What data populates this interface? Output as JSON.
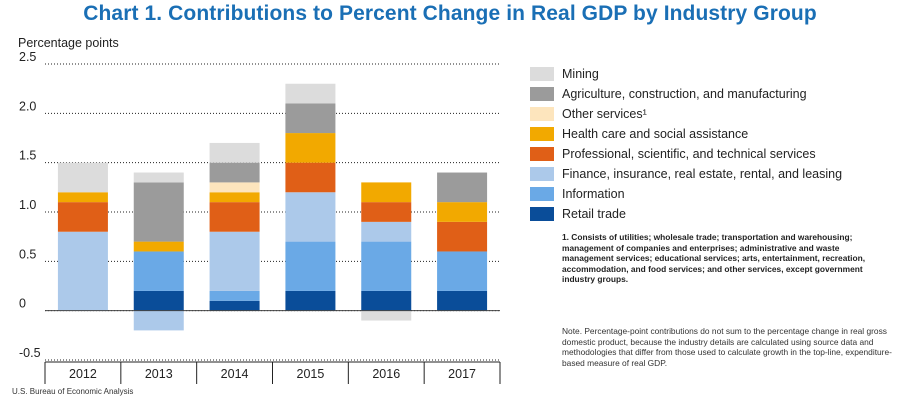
{
  "chart_data": {
    "type": "bar",
    "stacked": true,
    "title": "Chart 1. Contributions to Percent Change in Real GDP by Industry Group",
    "ylabel": "Percentage points",
    "xlabel": "",
    "ylim": [
      -0.5,
      2.5
    ],
    "yticks": [
      "2.5",
      "2.0",
      "1.5",
      "1.0",
      "0.5",
      "0",
      "-0.5"
    ],
    "categories": [
      "2012",
      "2013",
      "2014",
      "2015",
      "2016",
      "2017"
    ],
    "series": [
      {
        "name": "Retail trade",
        "color": "#0a4d99",
        "values": [
          0.0,
          0.2,
          0.1,
          0.2,
          0.2,
          0.2
        ]
      },
      {
        "name": "Information",
        "color": "#6aa9e6",
        "values": [
          0.0,
          0.4,
          0.1,
          0.5,
          0.5,
          0.4
        ]
      },
      {
        "name": "Finance, insurance, real estate, rental, and leasing",
        "color": "#acc9ea",
        "values": [
          0.8,
          -0.2,
          0.6,
          0.5,
          0.2,
          0.0
        ]
      },
      {
        "name": "Professional, scientific, and technical services",
        "color": "#e05f17",
        "values": [
          0.3,
          0.0,
          0.3,
          0.3,
          0.2,
          0.3
        ]
      },
      {
        "name": "Health care and social assistance",
        "color": "#f2a900",
        "values": [
          0.1,
          0.1,
          0.1,
          0.3,
          0.2,
          0.2
        ]
      },
      {
        "name": "Other services¹",
        "color": "#fde5bd",
        "values": [
          0.0,
          0.0,
          0.1,
          0.0,
          0.0,
          0.0
        ]
      },
      {
        "name": "Agriculture, construction, and manufacturing",
        "color": "#9b9b9b",
        "values": [
          0.0,
          0.6,
          0.2,
          0.3,
          0.0,
          0.3
        ]
      },
      {
        "name": "Mining",
        "color": "#dcdcdc",
        "values": [
          0.3,
          0.1,
          0.2,
          0.2,
          0.0,
          0.0
        ]
      },
      {
        "name": "Mining (negative)",
        "color": "#dcdcdc",
        "values": [
          0.0,
          0.0,
          0.0,
          0.0,
          -0.1,
          0.0
        ]
      }
    ],
    "grid": true,
    "legend_position": "right",
    "legend_order": [
      "Mining",
      "Agriculture, construction, and manufacturing",
      "Other services¹",
      "Health care and social assistance",
      "Professional, scientific, and technical services",
      "Finance, insurance, real estate, rental, and leasing",
      "Information",
      "Retail trade"
    ]
  },
  "legend": [
    {
      "label": "Mining",
      "color": "#dcdcdc"
    },
    {
      "label": "Agriculture, construction, and manufacturing",
      "color": "#9b9b9b"
    },
    {
      "label": "Other services¹",
      "color": "#fde5bd"
    },
    {
      "label": "Health care and social assistance",
      "color": "#f2a900"
    },
    {
      "label": "Professional, scientific, and technical services",
      "color": "#e05f17"
    },
    {
      "label": "Finance, insurance, real estate, rental, and leasing",
      "color": "#acc9ea"
    },
    {
      "label": "Information",
      "color": "#6aa9e6"
    },
    {
      "label": "Retail trade",
      "color": "#0a4d99"
    }
  ],
  "footnote": "1. Consists of utilities; wholesale trade; transportation and warehousing; management of companies and enterprises; administrative and waste management services; educational services; arts, entertainment, recreation, accommodation, and food services; and other services, except government industry groups.",
  "note": "Note. Percentage-point contributions do not sum to the percentage change in real gross domestic product, because the industry details are calculated using source data and methodologies that differ from those used to calculate growth in the top-line, expenditure-based measure of real GDP.",
  "source": "U.S. Bureau of Economic Analysis"
}
